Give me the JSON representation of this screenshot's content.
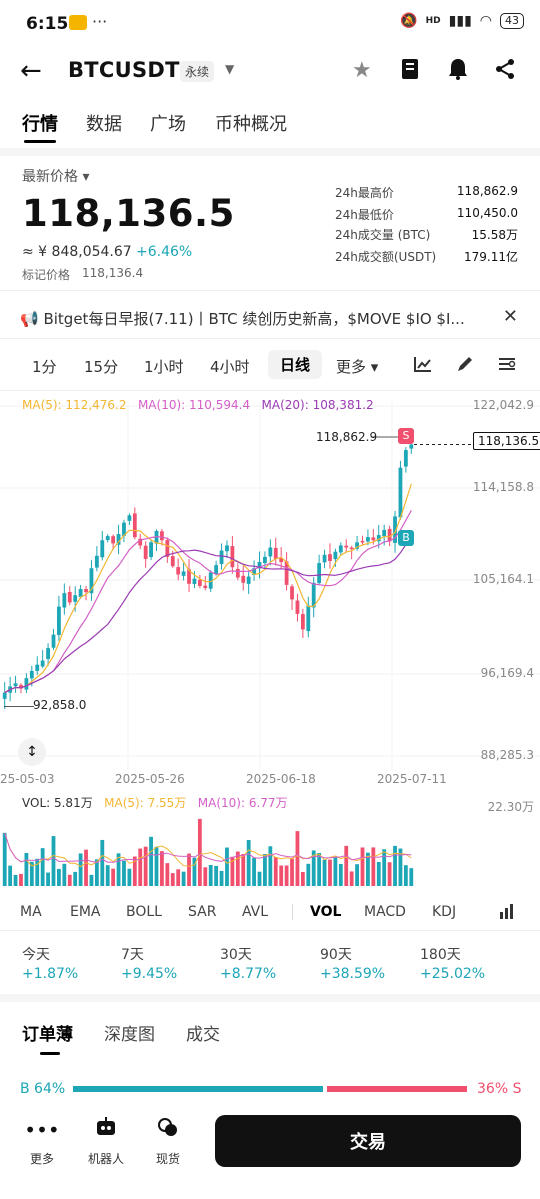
{
  "status_bar": {
    "time": "6:15",
    "dots": "···",
    "network": "HD",
    "battery": "43"
  },
  "header": {
    "pair": "BTCUSDT",
    "contract_type": "永续"
  },
  "tabs": [
    {
      "label": "行情"
    },
    {
      "label": "数据"
    },
    {
      "label": "广场"
    },
    {
      "label": "币种概况"
    }
  ],
  "price": {
    "label": "最新价格",
    "last": "118,136.5",
    "cny": "≈ ¥ 848,054.67",
    "change": "+6.46%",
    "mark_label": "标记价格",
    "mark": "118,136.4"
  },
  "stats": [
    {
      "label": "24h最高价",
      "value": "118,862.9"
    },
    {
      "label": "24h最低价",
      "value": "110,450.0"
    },
    {
      "label": "24h成交量 (BTC)",
      "value": "15.58万"
    },
    {
      "label": "24h成交额(USDT)",
      "value": "179.11亿"
    }
  ],
  "news": {
    "text": "Bitget每日早报(7.11)丨BTC 续创历史新高，$MOVE $IO $I..."
  },
  "intervals": [
    {
      "label": "1分"
    },
    {
      "label": "15分"
    },
    {
      "label": "1小时"
    },
    {
      "label": "4小时"
    },
    {
      "label": "日线"
    },
    {
      "label": "更多"
    }
  ],
  "chart": {
    "ma5": "MA(5): 112,476.2",
    "ma10": "MA(10): 110,594.4",
    "ma20": "MA(20): 108,381.2",
    "y_ticks": [
      "122,042.9",
      "114,158.8",
      "105,164.1",
      "96,169.4",
      "88,285.3"
    ],
    "high_label": "118,862.9",
    "current_label": "118,136.5",
    "low_label": "92,858.0",
    "dates": [
      "25-05-03",
      "2025-05-26",
      "2025-06-18",
      "2025-07-11"
    ],
    "marker_s": "S",
    "marker_b": "B",
    "vol": "VOL: 5.81万",
    "vol_ma5": "MA(5): 7.55万",
    "vol_ma10": "MA(10): 6.77万",
    "vol_max": "22.30万",
    "colors": {
      "up": "#1ca6b6",
      "down": "#f0506e",
      "ma5": "#f2b632",
      "ma10": "#d45fc6",
      "ma20": "#9b3bb3"
    }
  },
  "chart_data": {
    "type": "candlestick",
    "x_range": [
      "2025-05-03",
      "2025-07-11"
    ],
    "ylim": [
      88285.3,
      122042.9
    ],
    "key_points": [
      {
        "label": "low",
        "value": 92858.0
      },
      {
        "label": "high",
        "value": 118862.9
      },
      {
        "label": "last",
        "value": 118136.5
      }
    ],
    "closes": [
      94200,
      94800,
      95100,
      94600,
      95600,
      96300,
      96900,
      97300,
      98500,
      99800,
      102500,
      103800,
      102900,
      103600,
      104200,
      103900,
      106200,
      107400,
      108900,
      109300,
      108600,
      109500,
      110600,
      111300,
      109200,
      108400,
      107100,
      108700,
      109800,
      108900,
      107300,
      106400,
      105600,
      105900,
      104700,
      105200,
      104500,
      104300,
      105800,
      106500,
      107900,
      108400,
      106300,
      105300,
      104800,
      105400,
      106200,
      106800,
      107300,
      108200,
      107100,
      106800,
      104600,
      103200,
      101800,
      100300,
      102600,
      104800,
      106700,
      107500,
      106900,
      107800,
      108400,
      108200,
      108100,
      108700,
      108800,
      109200,
      108900,
      109400,
      109900,
      108800,
      111200,
      115900,
      117600,
      118136.5
    ],
    "volume_unit": "万",
    "volume_ylim": [
      0,
      22.3
    ]
  },
  "indicators": [
    {
      "label": "MA"
    },
    {
      "label": "EMA"
    },
    {
      "label": "BOLL"
    },
    {
      "label": "SAR"
    },
    {
      "label": "AVL"
    },
    {
      "label": "VOL"
    },
    {
      "label": "MACD"
    },
    {
      "label": "KDJ"
    }
  ],
  "performance": [
    {
      "label": "今天",
      "value": "+1.87%"
    },
    {
      "label": "7天",
      "value": "+9.45%"
    },
    {
      "label": "30天",
      "value": "+8.77%"
    },
    {
      "label": "90天",
      "value": "+38.59%"
    },
    {
      "label": "180天",
      "value": "+25.02%"
    }
  ],
  "orderbook": {
    "tabs": [
      {
        "label": "订单薄"
      },
      {
        "label": "深度图"
      },
      {
        "label": "成交"
      }
    ],
    "buy": "B 64%",
    "sell": "36% S",
    "buy_ratio": 0.64
  },
  "bottom_nav": [
    {
      "label": "更多"
    },
    {
      "label": "机器人"
    },
    {
      "label": "现货"
    }
  ],
  "trade_button": "交易"
}
